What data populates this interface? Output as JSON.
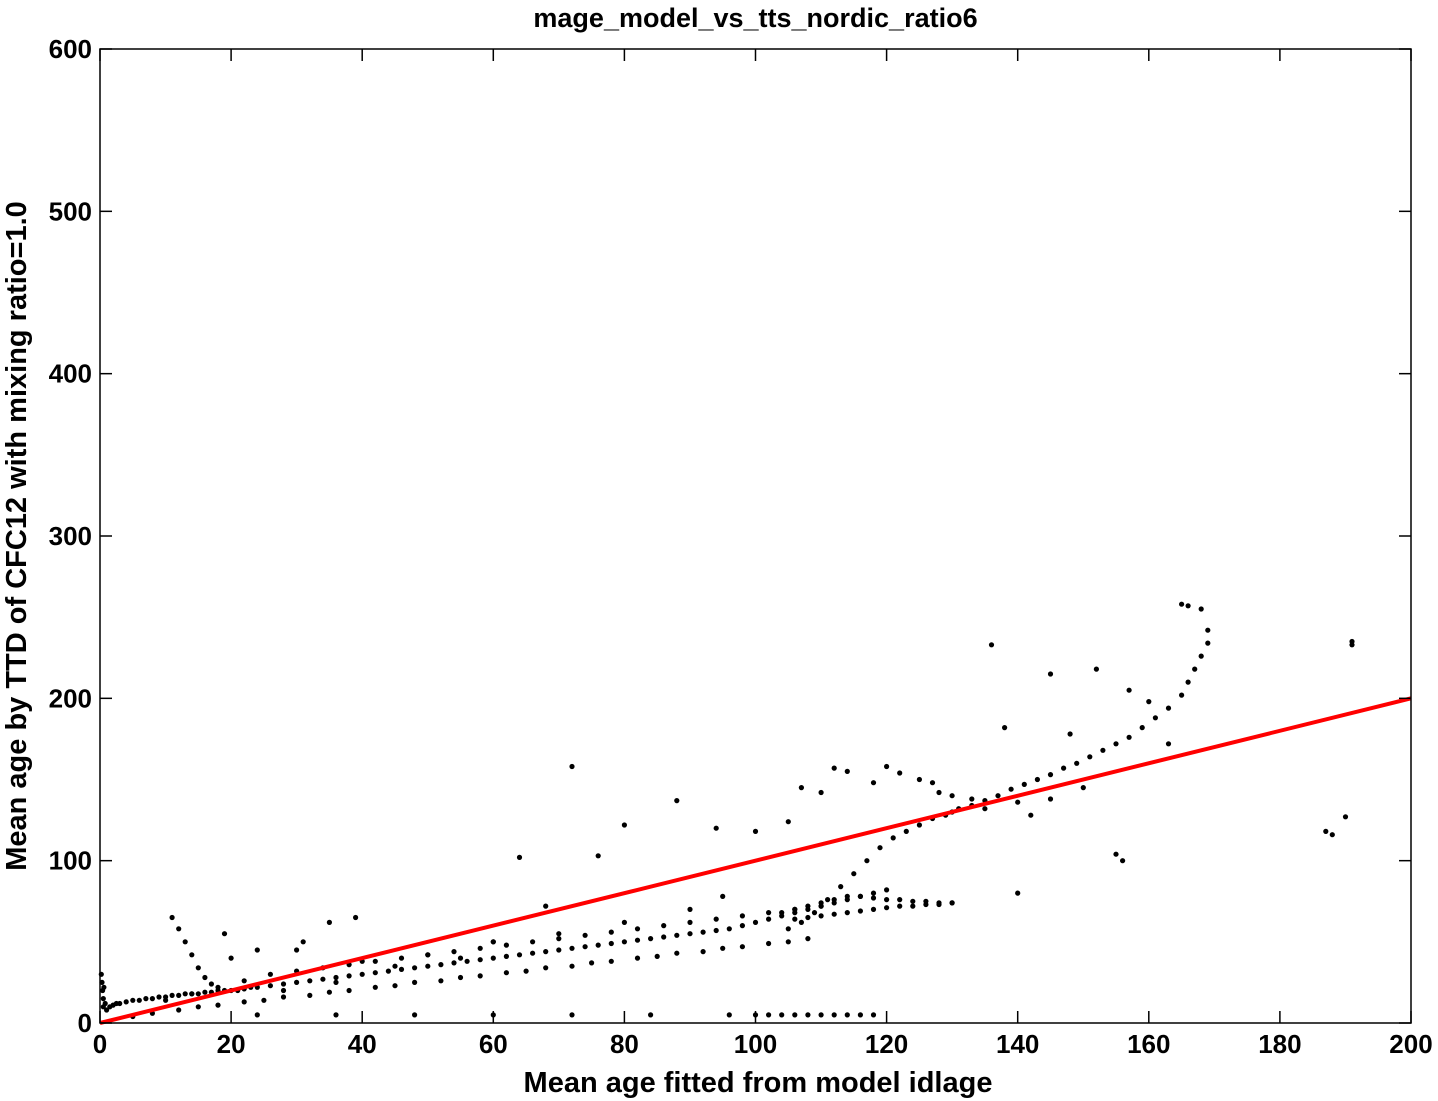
{
  "chart_data": {
    "type": "scatter",
    "title": "mage_model_vs_tts_nordic_ratio6",
    "xlabel": "Mean age fitted from model idlage",
    "ylabel": "Mean age by TTD of CFC12 with mixing ratio=1.0",
    "xlim": [
      0,
      200
    ],
    "ylim": [
      0,
      600
    ],
    "xticks": [
      0,
      20,
      40,
      60,
      80,
      100,
      120,
      140,
      160,
      180,
      200
    ],
    "yticks": [
      0,
      100,
      200,
      300,
      400,
      500,
      600
    ],
    "grid": false,
    "legend": "none",
    "colors": {
      "points": "#000000",
      "reference_line": "#ff0000"
    },
    "reference_line": {
      "label": "",
      "x": [
        0,
        200
      ],
      "y": [
        0,
        200
      ]
    },
    "series": [
      {
        "description_points": "scatter cloud",
        "x": [
          0.2,
          0.3,
          0.4,
          0.5,
          0.5,
          0.6,
          0.8,
          1,
          1.5,
          2,
          2.5,
          3,
          4,
          5,
          6,
          7,
          8,
          9,
          10,
          11,
          12,
          13,
          14,
          15,
          16,
          17,
          18,
          19,
          20,
          22,
          24,
          26,
          28,
          30,
          32,
          34,
          36,
          38,
          40,
          42,
          44,
          46,
          48,
          50,
          52,
          54,
          56,
          58,
          60,
          62,
          64,
          66,
          68,
          70,
          72,
          74,
          76,
          78,
          80,
          82,
          84,
          86,
          88,
          90,
          92,
          94,
          96,
          98,
          100,
          102,
          104,
          106,
          108,
          110,
          112,
          114,
          116,
          118,
          120,
          5,
          8,
          12,
          15,
          18,
          22,
          25,
          28,
          32,
          35,
          38,
          42,
          45,
          48,
          52,
          55,
          58,
          62,
          65,
          68,
          72,
          75,
          78,
          82,
          85,
          88,
          92,
          95,
          98,
          102,
          105,
          108,
          10,
          14,
          18,
          22,
          26,
          30,
          34,
          38,
          42,
          46,
          50,
          54,
          58,
          62,
          66,
          70,
          74,
          78,
          82,
          86,
          90,
          94,
          98,
          102,
          106,
          110,
          104,
          106,
          108,
          110,
          112,
          114,
          116,
          118,
          120,
          122,
          124,
          126,
          128,
          130,
          106,
          108,
          110,
          112,
          114,
          116,
          118,
          120,
          122,
          124,
          126,
          128,
          130,
          105,
          107,
          109,
          111,
          113,
          115,
          117,
          119,
          121,
          123,
          125,
          127,
          129,
          131,
          133,
          135,
          137,
          139,
          141,
          143,
          145,
          147,
          149,
          151,
          153,
          155,
          157,
          159,
          161,
          163,
          165,
          166,
          167,
          168,
          169,
          169,
          11,
          12,
          13,
          14,
          15,
          16,
          17,
          19,
          21,
          23,
          24,
          28,
          31,
          35,
          36,
          39,
          45,
          55,
          60,
          64,
          68,
          72,
          76,
          80,
          88,
          94,
          100,
          105,
          107,
          110,
          112,
          114,
          118,
          120,
          122,
          125,
          127,
          128,
          130,
          133,
          136,
          138,
          140,
          142,
          145,
          148,
          150,
          152,
          155,
          156,
          157,
          160,
          163,
          165,
          166,
          168,
          187,
          188,
          190,
          191,
          191,
          100,
          102,
          104,
          106,
          108,
          110,
          112,
          114,
          116,
          118,
          24,
          36,
          48,
          60,
          72,
          84,
          96,
          20,
          30,
          40,
          50,
          60,
          70,
          80,
          90,
          95,
          130,
          135,
          140,
          145
        ],
        "y": [
          30,
          25,
          20,
          15,
          10,
          22,
          12,
          8,
          10,
          11,
          12,
          12,
          13,
          14,
          14,
          15,
          15,
          16,
          16,
          17,
          17,
          18,
          18,
          18,
          19,
          19,
          20,
          20,
          20,
          21,
          22,
          23,
          24,
          25,
          26,
          27,
          28,
          29,
          30,
          31,
          32,
          33,
          34,
          35,
          36,
          37,
          38,
          39,
          40,
          41,
          42,
          43,
          44,
          45,
          46,
          47,
          48,
          49,
          50,
          51,
          52,
          53,
          54,
          55,
          56,
          57,
          58,
          60,
          62,
          64,
          66,
          68,
          70,
          72,
          74,
          76,
          78,
          80,
          82,
          4,
          6,
          8,
          10,
          11,
          13,
          14,
          16,
          17,
          19,
          20,
          22,
          23,
          25,
          26,
          28,
          29,
          31,
          32,
          34,
          35,
          37,
          38,
          40,
          41,
          43,
          44,
          46,
          47,
          49,
          50,
          52,
          14,
          18,
          22,
          26,
          30,
          32,
          34,
          36,
          38,
          40,
          42,
          44,
          46,
          48,
          50,
          52,
          54,
          56,
          58,
          60,
          62,
          64,
          66,
          68,
          70,
          72,
          68,
          70,
          72,
          74,
          76,
          78,
          78,
          77,
          76,
          76,
          75,
          75,
          74,
          74,
          64,
          65,
          66,
          67,
          68,
          69,
          70,
          71,
          72,
          72,
          73,
          73,
          74,
          58,
          62,
          68,
          76,
          84,
          92,
          100,
          108,
          114,
          118,
          122,
          126,
          128,
          132,
          134,
          137,
          140,
          144,
          147,
          150,
          153,
          157,
          160,
          164,
          168,
          172,
          176,
          182,
          188,
          194,
          202,
          210,
          218,
          226,
          234,
          242,
          65,
          58,
          50,
          42,
          34,
          28,
          24,
          55,
          20,
          22,
          45,
          20,
          50,
          62,
          25,
          65,
          35,
          40,
          50,
          102,
          72,
          158,
          103,
          122,
          137,
          120,
          118,
          124,
          145,
          142,
          157,
          155,
          148,
          158,
          154,
          150,
          148,
          142,
          140,
          138,
          233,
          182,
          80,
          128,
          215,
          178,
          145,
          218,
          104,
          100,
          205,
          198,
          172,
          258,
          257,
          255,
          118,
          116,
          127,
          233,
          235,
          5,
          5,
          5,
          5,
          5,
          5,
          5,
          5,
          5,
          5,
          5,
          5,
          5,
          5,
          5,
          5,
          5,
          40,
          45,
          38,
          42,
          50,
          55,
          62,
          70,
          78,
          130,
          132,
          136,
          138
        ]
      }
    ]
  }
}
